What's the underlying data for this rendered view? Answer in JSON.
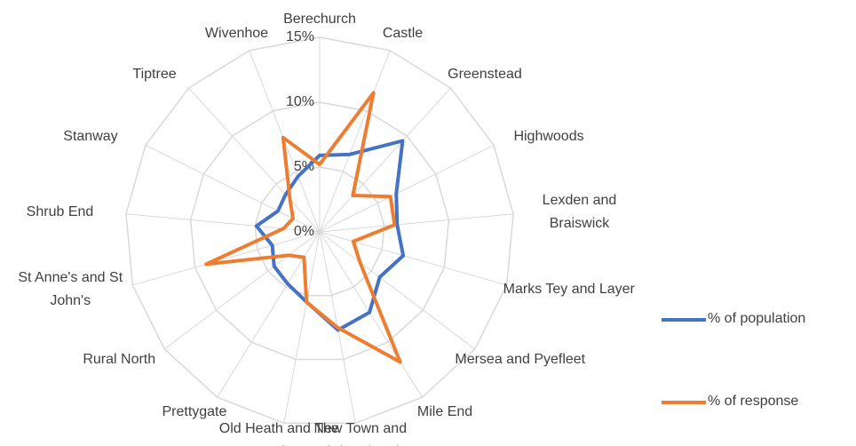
{
  "chart_data": {
    "type": "radar",
    "categories": [
      "Berechurch",
      "Castle",
      "Greenstead",
      "Highwoods",
      "Lexden and Braiswick",
      "Marks Tey and Layer",
      "Mersea and Pyefleet",
      "Mile End",
      "New Town and Christ Church",
      "Old Heath and The Hythe",
      "Prettygate",
      "Rural North",
      "St Anne's and St John's",
      "Shrub End",
      "Stanway",
      "Tiptree",
      "Wivenhoe"
    ],
    "series": [
      {
        "name": "% of population",
        "color": "#4472c4",
        "values": [
          5.9,
          6.4,
          9.5,
          6.6,
          6.0,
          6.7,
          5.8,
          7.3,
          7.7,
          5.5,
          4.7,
          4.4,
          3.8,
          4.9,
          3.6,
          3.9,
          4.6
        ]
      },
      {
        "name": "% of response",
        "color": "#ed7d31",
        "values": [
          5.2,
          11.5,
          3.8,
          6.1,
          5.8,
          2.7,
          3.9,
          11.8,
          7.5,
          5.5,
          2.3,
          3.0,
          9.1,
          2.8,
          2.3,
          3.4,
          7.8
        ]
      }
    ],
    "ylim": [
      0,
      15
    ],
    "yticks": [
      {
        "value": 0,
        "label": "0%"
      },
      {
        "value": 5,
        "label": "5%"
      },
      {
        "value": 10,
        "label": "10%"
      },
      {
        "value": 15,
        "label": "15%"
      }
    ],
    "grid": true,
    "legend": "right"
  }
}
